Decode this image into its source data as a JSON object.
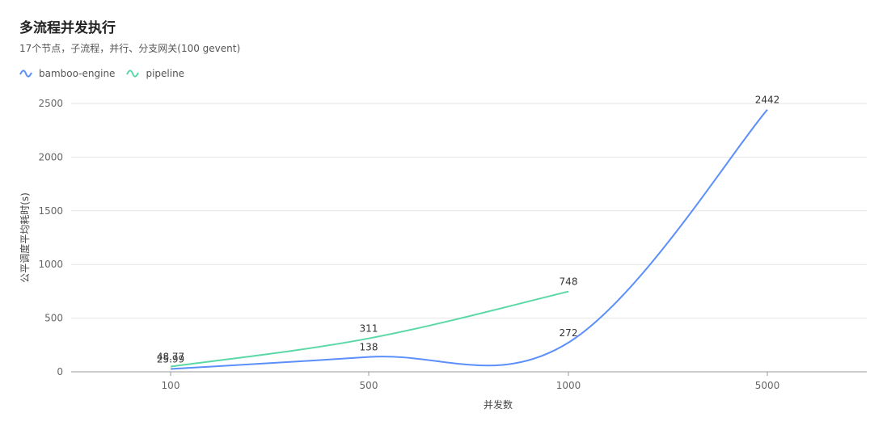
{
  "header": {
    "title": "多流程并发执行",
    "subtitle": "17个节点，子流程，并行、分支网关(100 gevent)"
  },
  "chart_data": {
    "type": "line",
    "title": "多流程并发执行",
    "subtitle": "17个节点，子流程，并行、分支网关(100 gevent)",
    "categories": [
      "100",
      "500",
      "1000",
      "5000"
    ],
    "xlabel": "并发数",
    "ylabel": "公平调度平均耗时(s)",
    "ylim": [
      0,
      2500
    ],
    "yticks": [
      0,
      500,
      1000,
      1500,
      2000,
      2500
    ],
    "grid": true,
    "legend_position": "top-left",
    "series": [
      {
        "name": "bamboo-engine",
        "color": "#5b8ff9",
        "values": [
          25.99,
          138,
          272,
          2442
        ]
      },
      {
        "name": "pipeline",
        "color": "#5ad8a6",
        "values": [
          48.77,
          311,
          748,
          null
        ]
      }
    ]
  }
}
